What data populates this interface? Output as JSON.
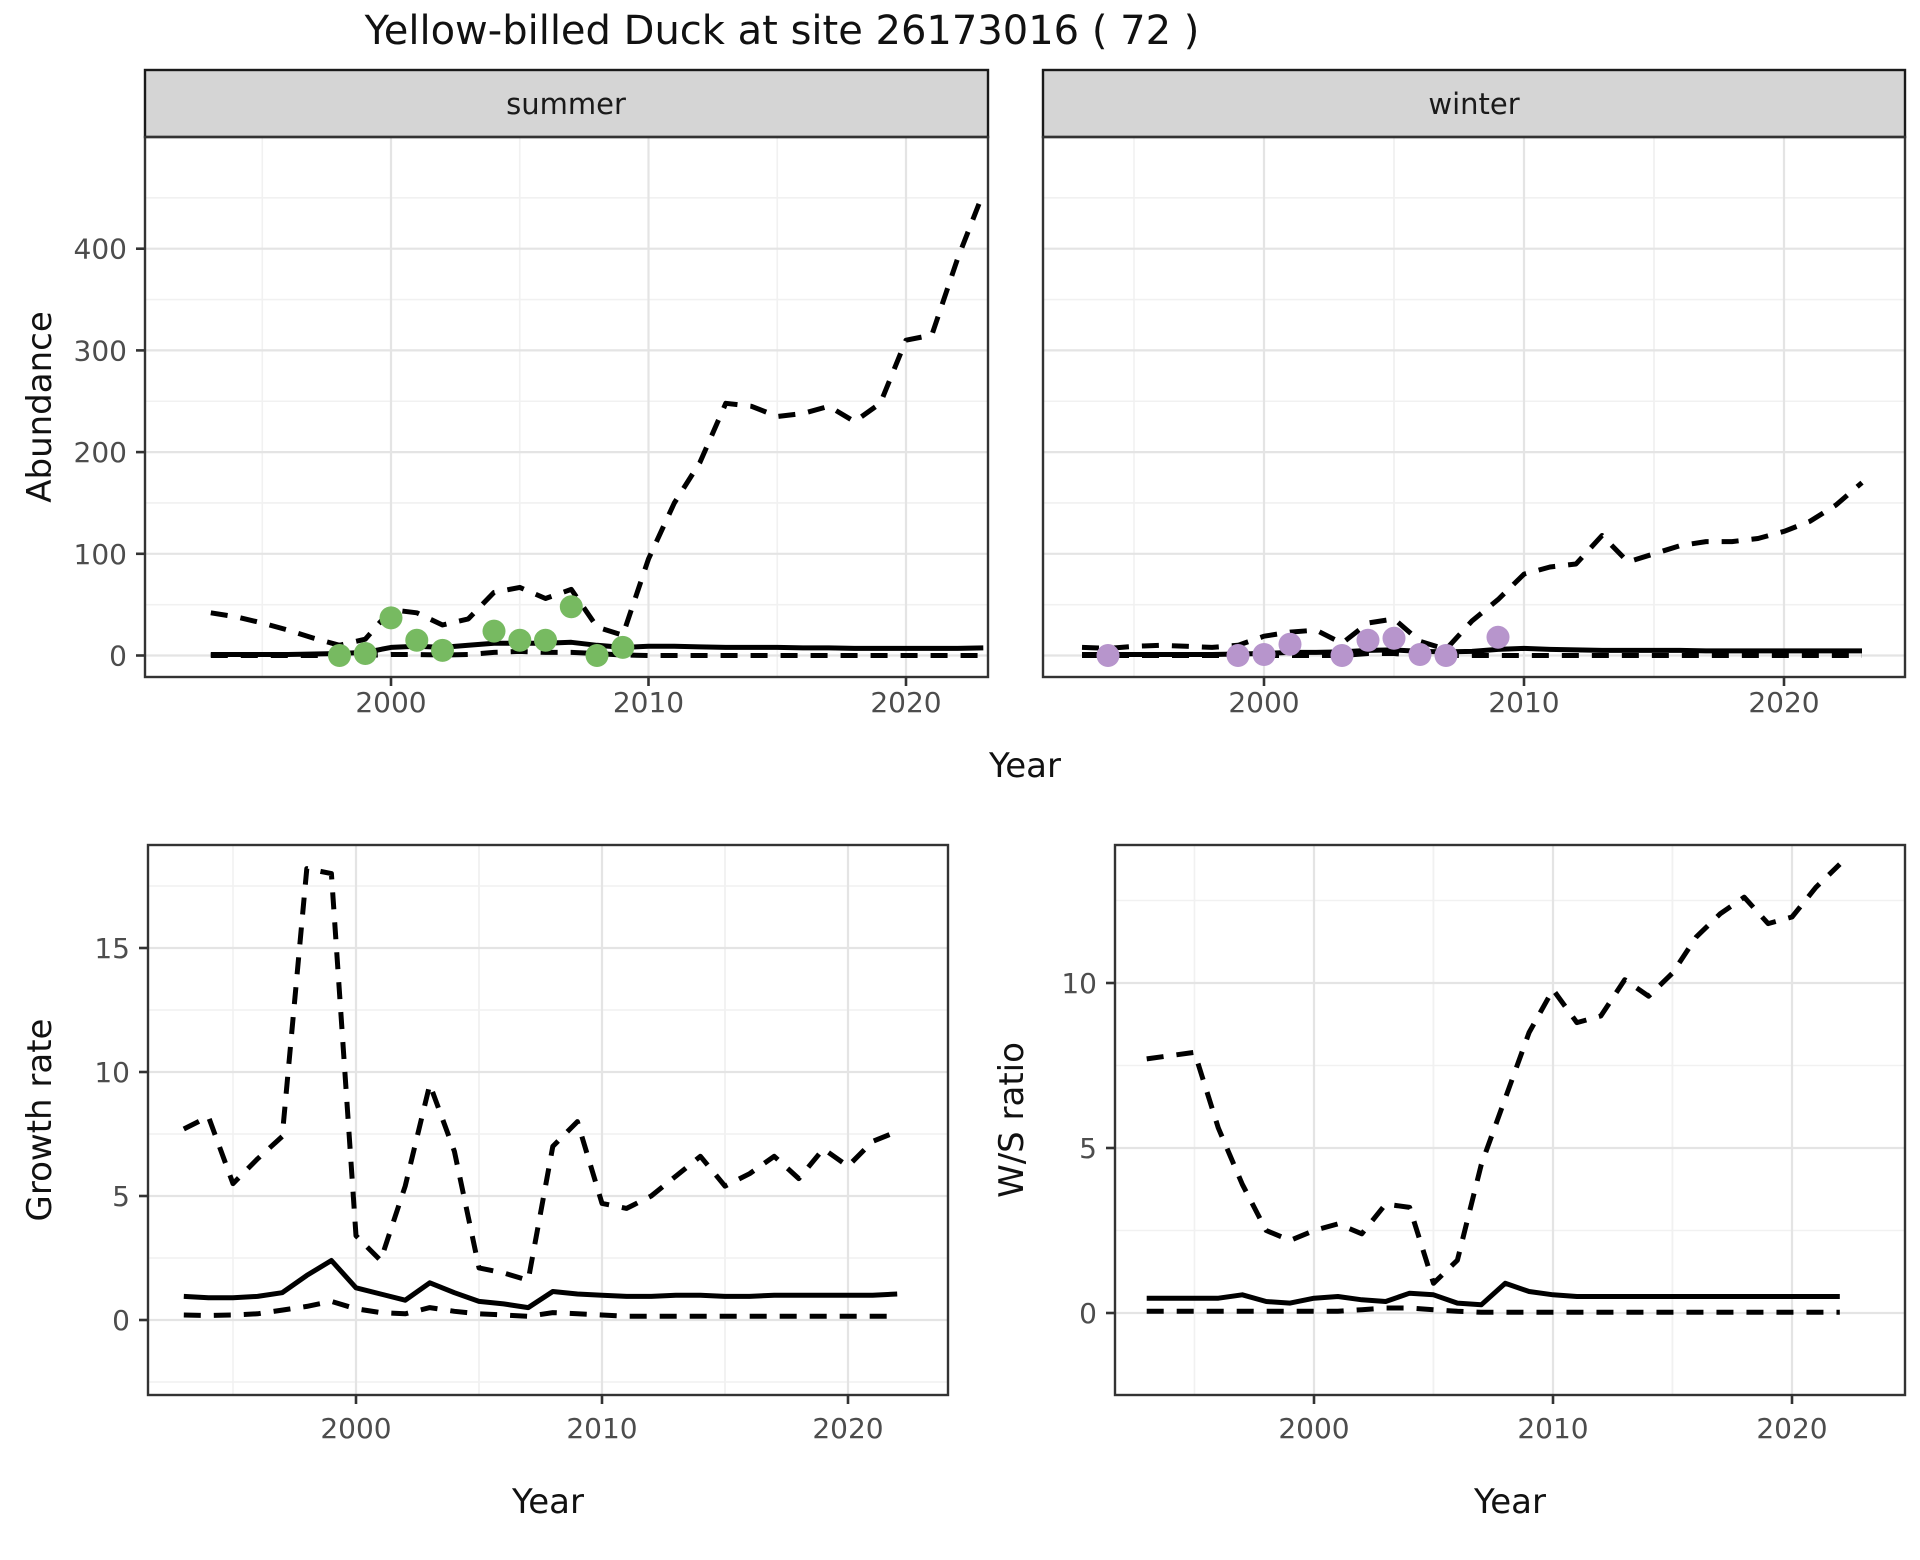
{
  "title": "Yellow-billed Duck at site 26173016 ( 72 )",
  "facets": {
    "summer": "summer",
    "winter": "winter"
  },
  "axes": {
    "abundance": "Abundance",
    "year": "Year",
    "growth": "Growth rate",
    "ws": "W/S ratio"
  },
  "colors": {
    "summer_points": "#77ba61",
    "winter_points": "#b795cc",
    "line": "#000000",
    "strip_bg": "#d5d5d5",
    "panel_border": "#333333",
    "grid_major": "#e4e4e4",
    "grid_minor": "#f1f1f1",
    "tick_text": "#4d4d4d"
  },
  "chart_data": [
    {
      "id": "abundance-summer",
      "type": "line",
      "facet_label": "summer",
      "xlabel": "Year",
      "ylabel": "Abundance",
      "x_ticks": [
        2000,
        2010,
        2020
      ],
      "y_ticks": [
        0,
        100,
        200,
        300,
        400
      ],
      "years": [
        1993,
        1994,
        1995,
        1996,
        1997,
        1998,
        1999,
        2000,
        2001,
        2002,
        2003,
        2004,
        2005,
        2006,
        2007,
        2008,
        2009,
        2010,
        2011,
        2012,
        2013,
        2014,
        2015,
        2016,
        2017,
        2018,
        2019,
        2020,
        2021,
        2022,
        2023
      ],
      "series": [
        {
          "name": "upper-ci",
          "style": "dashed",
          "values": [
            42,
            38,
            32,
            25,
            17,
            10,
            16,
            45,
            42,
            30,
            36,
            62,
            67,
            56,
            65,
            28,
            20,
            95,
            150,
            190,
            248,
            245,
            235,
            238,
            245,
            230,
            248,
            310,
            315,
            390,
            455
          ]
        },
        {
          "name": "lower-ci",
          "style": "dashed",
          "values": [
            0,
            0,
            0,
            0,
            0,
            0,
            0,
            1,
            1,
            0.5,
            1,
            3,
            4,
            3,
            3,
            2,
            0.5,
            0,
            0,
            0,
            0,
            0,
            0,
            0,
            0,
            0,
            0,
            0,
            0,
            0,
            0
          ]
        },
        {
          "name": "mean",
          "style": "solid",
          "values": [
            1,
            1,
            1,
            1,
            1.5,
            2,
            3,
            8,
            9,
            8,
            10,
            12,
            12,
            12,
            13,
            10,
            8,
            9,
            9,
            8.5,
            8,
            8,
            8,
            7.5,
            7.5,
            7,
            7,
            7,
            7,
            7,
            7.5
          ]
        }
      ],
      "points": {
        "name": "summer-observations",
        "color": "#77ba61",
        "years": [
          1998,
          1999,
          2000,
          2001,
          2002,
          2004,
          2005,
          2006,
          2007,
          2008,
          2009
        ],
        "values": [
          0,
          2,
          37,
          15,
          5,
          24,
          15,
          15,
          48,
          0,
          8
        ]
      }
    },
    {
      "id": "abundance-winter",
      "type": "line",
      "facet_label": "winter",
      "xlabel": "Year",
      "ylabel": "Abundance",
      "x_ticks": [
        2000,
        2010,
        2020
      ],
      "y_ticks": [
        0,
        100,
        200,
        300,
        400
      ],
      "years": [
        1993,
        1994,
        1995,
        1996,
        1997,
        1998,
        1999,
        2000,
        2001,
        2002,
        2003,
        2004,
        2005,
        2006,
        2007,
        2008,
        2009,
        2010,
        2011,
        2012,
        2013,
        2014,
        2015,
        2016,
        2017,
        2018,
        2019,
        2020,
        2021,
        2022,
        2023
      ],
      "series": [
        {
          "name": "upper-ci",
          "style": "dashed",
          "values": [
            8,
            7,
            9,
            10,
            9,
            8,
            10,
            19,
            23,
            25,
            12,
            32,
            36,
            14,
            6,
            34,
            55,
            80,
            87,
            90,
            118,
            92,
            100,
            108,
            112,
            112,
            115,
            122,
            132,
            148,
            170
          ]
        },
        {
          "name": "lower-ci",
          "style": "dashed",
          "values": [
            0,
            0,
            0,
            0,
            0,
            0,
            0,
            0,
            0,
            0,
            0,
            2,
            2,
            0,
            0,
            0,
            0,
            0,
            0,
            0,
            0,
            0,
            0,
            0,
            0,
            0,
            0,
            0,
            0,
            0,
            0
          ]
        },
        {
          "name": "mean",
          "style": "solid",
          "values": [
            1,
            1,
            1,
            1,
            1,
            1,
            1.5,
            2,
            3,
            3,
            3.5,
            5,
            5.5,
            4,
            3.5,
            4,
            6,
            7,
            6,
            5.5,
            5,
            5,
            5,
            5,
            4.5,
            4.5,
            4.5,
            4.5,
            4.5,
            4.5,
            4.5
          ]
        }
      ],
      "points": {
        "name": "winter-observations",
        "color": "#b795cc",
        "years": [
          1994,
          1999,
          2000,
          2001,
          2003,
          2004,
          2005,
          2006,
          2007,
          2009
        ],
        "values": [
          0,
          0,
          1,
          11,
          0,
          15,
          17,
          1,
          0,
          18
        ]
      }
    },
    {
      "id": "growth-rate",
      "type": "line",
      "facet_label": "",
      "xlabel": "Year",
      "ylabel": "Growth rate",
      "x_ticks": [
        2000,
        2010,
        2020
      ],
      "y_ticks": [
        0,
        5,
        10,
        15
      ],
      "years": [
        1993,
        1994,
        1995,
        1996,
        1997,
        1998,
        1999,
        2000,
        2001,
        2002,
        2003,
        2004,
        2005,
        2006,
        2007,
        2008,
        2009,
        2010,
        2011,
        2012,
        2013,
        2014,
        2015,
        2016,
        2017,
        2018,
        2019,
        2020,
        2021,
        2022
      ],
      "series": [
        {
          "name": "upper-ci",
          "style": "dashed",
          "values": [
            7.7,
            8.2,
            5.5,
            6.5,
            7.4,
            18.2,
            18.0,
            3.4,
            2.4,
            5.4,
            9.5,
            6.8,
            2.1,
            1.9,
            1.6,
            7.0,
            8.0,
            4.7,
            4.5,
            5.0,
            5.8,
            6.6,
            5.4,
            5.9,
            6.6,
            5.7,
            6.9,
            6.2,
            7.2,
            7.6
          ]
        },
        {
          "name": "lower-ci",
          "style": "dashed",
          "values": [
            0.2,
            0.18,
            0.2,
            0.25,
            0.4,
            0.55,
            0.75,
            0.45,
            0.3,
            0.25,
            0.5,
            0.35,
            0.25,
            0.2,
            0.15,
            0.3,
            0.25,
            0.2,
            0.15,
            0.15,
            0.15,
            0.15,
            0.15,
            0.15,
            0.15,
            0.15,
            0.15,
            0.15,
            0.15,
            0.15
          ]
        },
        {
          "name": "mean",
          "style": "solid",
          "values": [
            0.95,
            0.9,
            0.9,
            0.95,
            1.1,
            1.8,
            2.4,
            1.3,
            1.05,
            0.8,
            1.5,
            1.1,
            0.75,
            0.65,
            0.5,
            1.15,
            1.05,
            1.0,
            0.95,
            0.95,
            1.0,
            1.0,
            0.95,
            0.95,
            1.0,
            1.0,
            1.0,
            1.0,
            1.0,
            1.05
          ]
        }
      ],
      "points": null
    },
    {
      "id": "ws-ratio",
      "type": "line",
      "facet_label": "",
      "xlabel": "Year",
      "ylabel": "W/S ratio",
      "x_ticks": [
        2000,
        2010,
        2020
      ],
      "y_ticks": [
        0,
        5,
        10
      ],
      "years": [
        1993,
        1994,
        1995,
        1996,
        1997,
        1998,
        1999,
        2000,
        2001,
        2002,
        2003,
        2004,
        2005,
        2006,
        2007,
        2008,
        2009,
        2010,
        2011,
        2012,
        2013,
        2014,
        2015,
        2016,
        2017,
        2018,
        2019,
        2020,
        2021,
        2022
      ],
      "series": [
        {
          "name": "upper-ci",
          "style": "dashed",
          "values": [
            7.7,
            7.8,
            7.9,
            5.6,
            3.9,
            2.5,
            2.2,
            2.5,
            2.7,
            2.4,
            3.3,
            3.2,
            0.9,
            1.6,
            4.5,
            6.5,
            8.5,
            9.8,
            8.8,
            9.0,
            10.1,
            9.6,
            10.3,
            11.4,
            12.1,
            12.6,
            11.8,
            12.0,
            12.9,
            13.6
          ]
        },
        {
          "name": "lower-ci",
          "style": "dashed",
          "values": [
            0.05,
            0.05,
            0.05,
            0.05,
            0.05,
            0.05,
            0.05,
            0.05,
            0.05,
            0.1,
            0.15,
            0.15,
            0.1,
            0.05,
            0.02,
            0.02,
            0.02,
            0.02,
            0.02,
            0.02,
            0.02,
            0.02,
            0.02,
            0.02,
            0.02,
            0.02,
            0.02,
            0.02,
            0.02,
            0.02
          ]
        },
        {
          "name": "mean",
          "style": "solid",
          "values": [
            0.45,
            0.45,
            0.45,
            0.45,
            0.55,
            0.35,
            0.3,
            0.45,
            0.5,
            0.4,
            0.35,
            0.6,
            0.55,
            0.3,
            0.25,
            0.9,
            0.65,
            0.55,
            0.5,
            0.5,
            0.5,
            0.5,
            0.5,
            0.5,
            0.5,
            0.5,
            0.5,
            0.5,
            0.5,
            0.5
          ]
        }
      ],
      "points": null
    }
  ]
}
